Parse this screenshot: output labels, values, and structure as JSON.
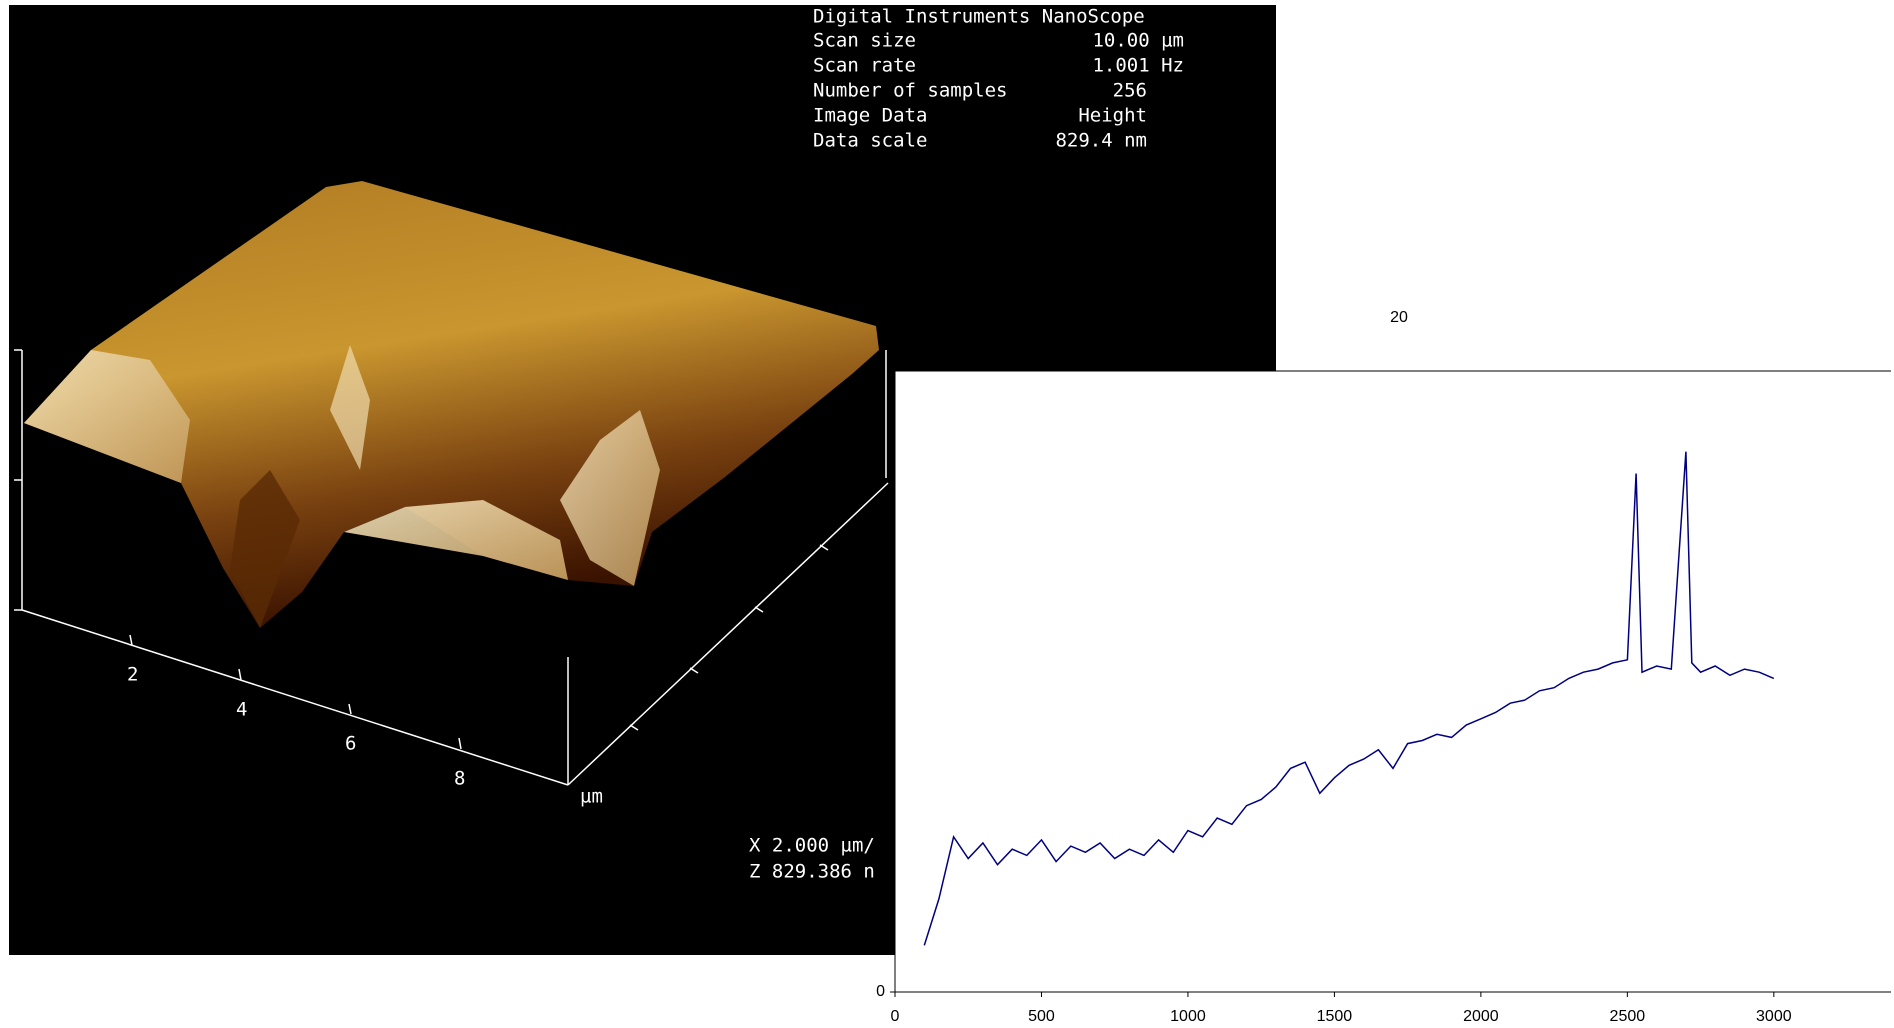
{
  "afm_panel": {
    "title": "Digital Instruments NanoScope",
    "info": [
      [
        "Scan size",
        "10.00 µm"
      ],
      [
        "Scan rate",
        "1.001 Hz"
      ],
      [
        "Number of samples",
        "256"
      ],
      [
        "Image Data",
        "Height"
      ],
      [
        "Data scale",
        "829.4 nm"
      ]
    ],
    "axis_labels": [
      "2",
      "4",
      "6",
      "8"
    ],
    "axis_unit": "µm",
    "scale_x": "X  2.000 µm/",
    "scale_z": "Z  829.386 n"
  },
  "chart_data": {
    "type": "line",
    "x": [
      100,
      150,
      200,
      250,
      300,
      350,
      400,
      450,
      500,
      550,
      600,
      650,
      700,
      750,
      800,
      850,
      900,
      950,
      1000,
      1050,
      1100,
      1150,
      1200,
      1250,
      1300,
      1350,
      1400,
      1450,
      1500,
      1550,
      1600,
      1650,
      1700,
      1750,
      1800,
      1850,
      1900,
      1950,
      2000,
      2050,
      2100,
      2150,
      2200,
      2250,
      2300,
      2350,
      2400,
      2450,
      2500,
      2530,
      2550,
      2600,
      2650,
      2700,
      2720,
      2750,
      2800,
      2850,
      2900,
      2950,
      3000
    ],
    "series": [
      {
        "color": "#000080",
        "values": [
          1.5,
          3.0,
          5.0,
          4.3,
          4.8,
          4.1,
          4.6,
          4.4,
          4.9,
          4.2,
          4.7,
          4.5,
          4.8,
          4.3,
          4.6,
          4.4,
          4.9,
          4.5,
          5.2,
          5.0,
          5.6,
          5.4,
          6.0,
          6.2,
          6.6,
          7.2,
          7.4,
          6.4,
          6.9,
          7.3,
          7.5,
          7.8,
          7.2,
          8.0,
          8.1,
          8.3,
          8.2,
          8.6,
          8.8,
          9.0,
          9.3,
          9.4,
          9.7,
          9.8,
          10.1,
          10.3,
          10.4,
          10.6,
          10.7,
          16.7,
          10.3,
          10.5,
          10.4,
          17.4,
          10.6,
          10.3,
          10.5,
          10.2,
          10.4,
          10.3,
          10.1
        ]
      }
    ],
    "xlim": [
      0,
      3400
    ],
    "ylim": [
      0,
      20
    ],
    "xticks": [
      0,
      500,
      1000,
      1500,
      2000,
      2500,
      3000
    ],
    "yticks": [
      0,
      20
    ]
  }
}
